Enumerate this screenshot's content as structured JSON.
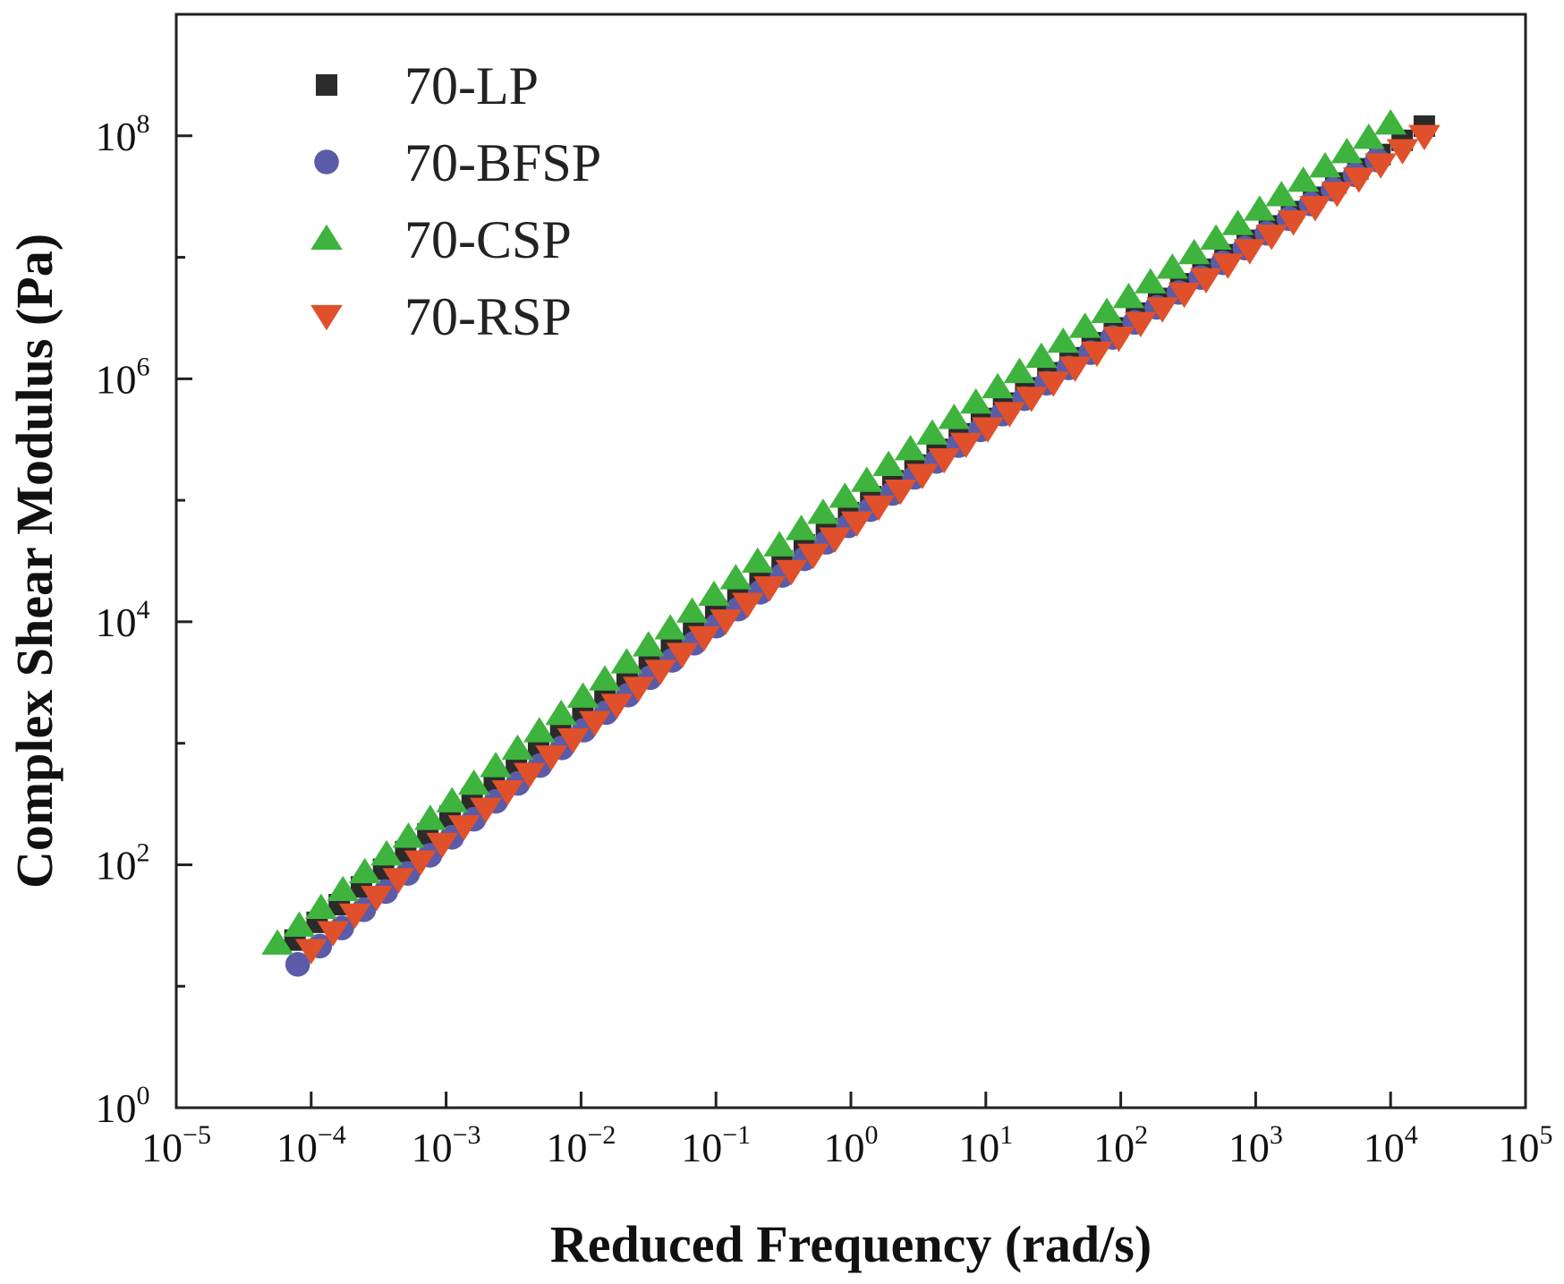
{
  "chart_data": {
    "type": "scatter",
    "title": "",
    "xlabel": "Reduced Frequency (rad/s)",
    "ylabel": "Complex Shear Modulus (Pa)",
    "xscale": "log",
    "yscale": "log",
    "xlim_exp": [
      -5,
      5
    ],
    "ylim_exp": [
      0,
      9
    ],
    "x_ticks": [
      {
        "base": "10",
        "exp": "−5"
      },
      {
        "base": "10",
        "exp": "−4"
      },
      {
        "base": "10",
        "exp": "−3"
      },
      {
        "base": "10",
        "exp": "−2"
      },
      {
        "base": "10",
        "exp": "−1"
      },
      {
        "base": "10",
        "exp": "0"
      },
      {
        "base": "10",
        "exp": "1"
      },
      {
        "base": "10",
        "exp": "2"
      },
      {
        "base": "10",
        "exp": "3"
      },
      {
        "base": "10",
        "exp": "4"
      },
      {
        "base": "10",
        "exp": "5"
      }
    ],
    "y_ticks": [
      {
        "base": "10",
        "exp": "0"
      },
      {
        "base": "10",
        "exp": "2"
      },
      {
        "base": "10",
        "exp": "4"
      },
      {
        "base": "10",
        "exp": "6"
      },
      {
        "base": "10",
        "exp": "8"
      }
    ],
    "legend_position": "top-left",
    "series": [
      {
        "name": "70-LP",
        "marker": "square",
        "color": "#2b2b2b",
        "x_range_exp": [
          -4.12,
          4.25
        ],
        "y_range_exp": [
          1.38,
          8.08
        ],
        "points": 52
      },
      {
        "name": "70-BFSP",
        "marker": "circle",
        "color": "#5b5ba8",
        "x_range_exp": [
          -4.1,
          3.9
        ],
        "y_range_exp": [
          1.18,
          7.8
        ],
        "points": 50
      },
      {
        "name": "70-CSP",
        "marker": "triangle-up",
        "color": "#3eb33e",
        "x_range_exp": [
          -4.25,
          4.0
        ],
        "y_range_exp": [
          1.35,
          8.1
        ],
        "points": 52
      },
      {
        "name": "70-RSP",
        "marker": "triangle-down",
        "color": "#e0502a",
        "x_range_exp": [
          -4.0,
          4.25
        ],
        "y_range_exp": [
          1.3,
          8.0
        ],
        "points": 52
      }
    ]
  }
}
